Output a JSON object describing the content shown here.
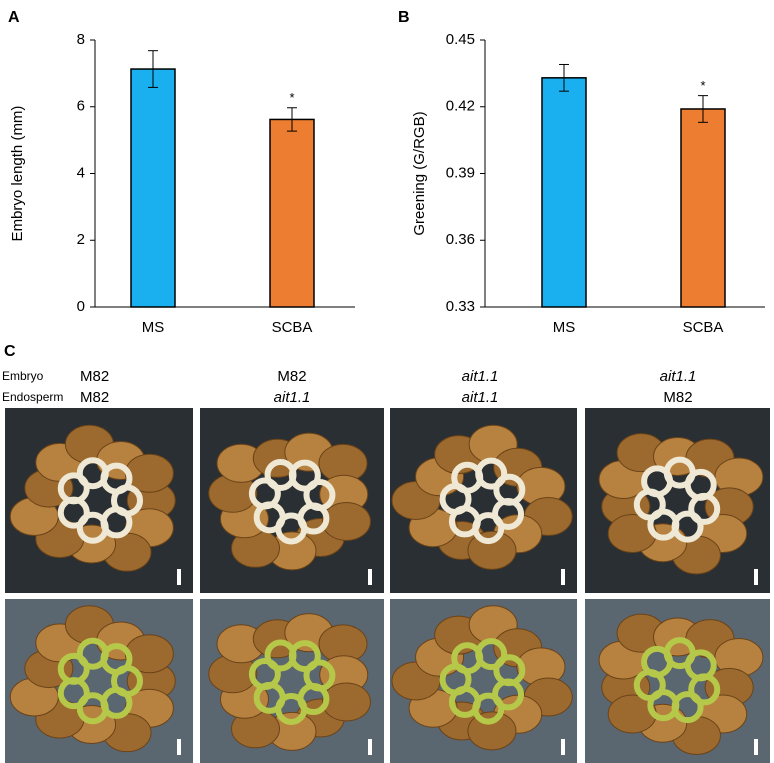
{
  "chart_data": [
    {
      "type": "bar",
      "panel_label": "A",
      "y_label": "Embryo length (mm)",
      "categories": [
        "MS",
        "SCBA"
      ],
      "values": [
        7.13,
        5.62
      ],
      "errors": [
        0.55,
        0.35
      ],
      "colors": [
        "#1ab0f0",
        "#ed7d31"
      ],
      "significance": [
        null,
        "*"
      ],
      "ylim": [
        0,
        8
      ],
      "yticks": [
        0,
        2,
        4,
        6,
        8
      ]
    },
    {
      "type": "bar",
      "panel_label": "B",
      "y_label": "Greening (G/RGB)",
      "categories": [
        "MS",
        "SCBA"
      ],
      "values": [
        0.433,
        0.419
      ],
      "errors": [
        0.006,
        0.006
      ],
      "colors": [
        "#1ab0f0",
        "#ed7d31"
      ],
      "significance": [
        null,
        "*"
      ],
      "ylim": [
        0.33,
        0.45
      ],
      "yticks": [
        0.33,
        0.36,
        0.39,
        0.42,
        0.45
      ]
    }
  ],
  "panel_c": {
    "panel_label": "C",
    "rows": [
      {
        "label": "Embryo",
        "cells": [
          {
            "text": "M82",
            "italic": false
          },
          {
            "text": "M82",
            "italic": false
          },
          {
            "text": "ait1.1",
            "italic": true
          },
          {
            "text": "ait1.1",
            "italic": true
          }
        ]
      },
      {
        "label": "Endosperm",
        "cells": [
          {
            "text": "M82",
            "italic": false
          },
          {
            "text": "ait1.1",
            "italic": true
          },
          {
            "text": "ait1.1",
            "italic": true
          },
          {
            "text": "M82",
            "italic": false
          }
        ]
      }
    ]
  }
}
